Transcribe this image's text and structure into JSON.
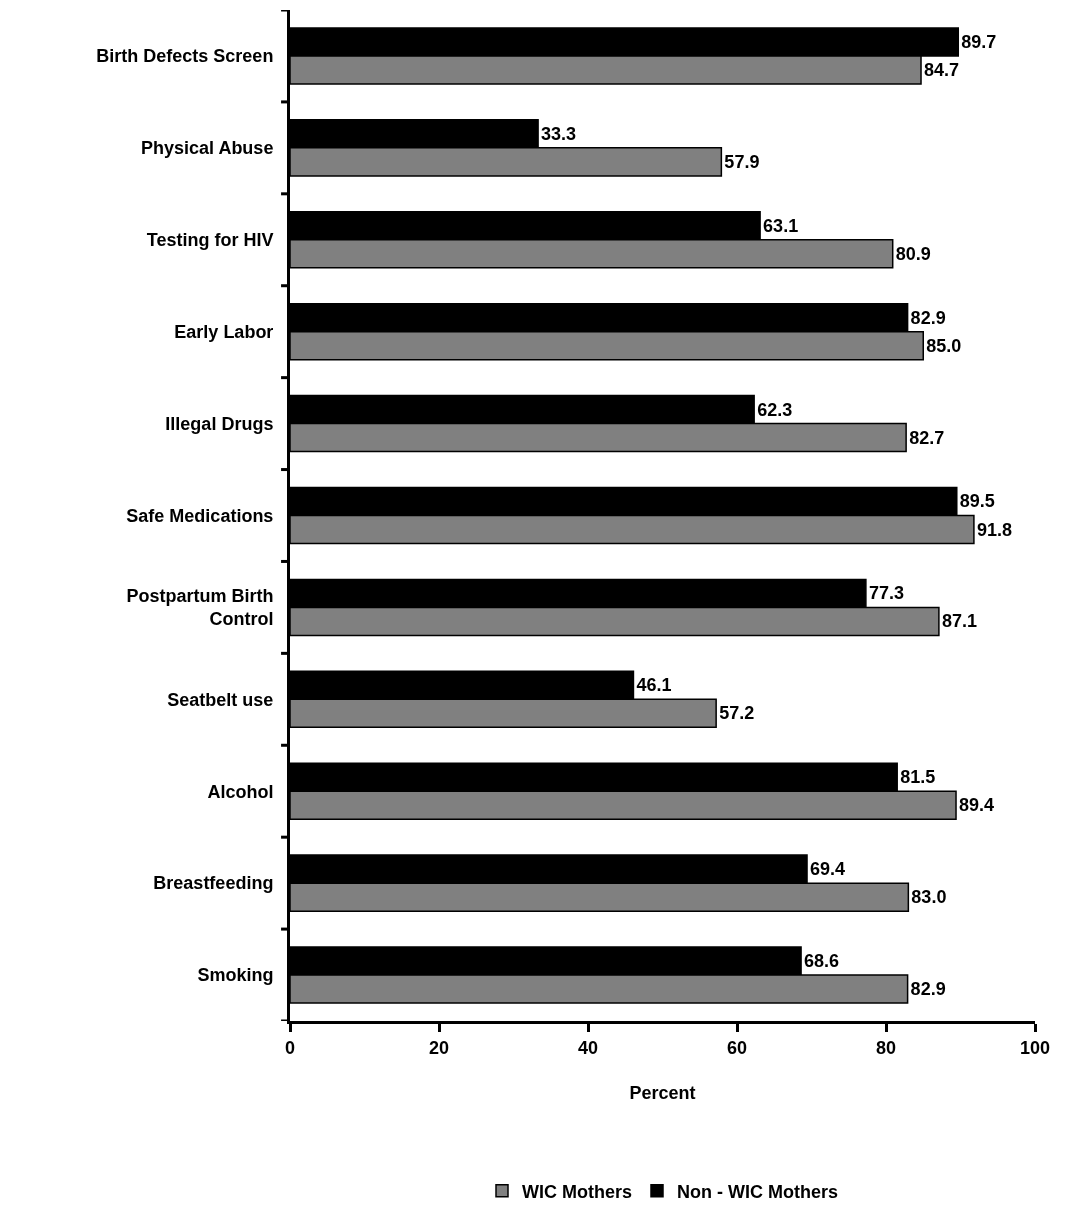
{
  "chart_data": {
    "type": "bar",
    "orientation": "horizontal",
    "xlabel": "Percent",
    "categories": [
      "Birth Defects Screen",
      "Physical Abuse",
      "Testing for HIV",
      "Early Labor",
      "Illegal Drugs",
      "Safe Medications",
      "Postpartum Birth Control",
      "Seatbelt use",
      "Alcohol",
      "Breastfeeding",
      "Smoking"
    ],
    "series": [
      {
        "name": "WIC Mothers",
        "color": "#808080",
        "values": [
          84.7,
          57.9,
          80.9,
          85.0,
          82.7,
          91.8,
          87.1,
          57.2,
          89.4,
          83.0,
          82.9
        ],
        "value_labels": [
          "84.7",
          "57.9",
          "80.9",
          "85.0",
          "82.7",
          "91.8",
          "87.1",
          "57.2",
          "89.4",
          "83.0",
          "82.9"
        ]
      },
      {
        "name": "Non - WIC Mothers",
        "color": "#000000",
        "values": [
          89.7,
          33.3,
          63.1,
          82.9,
          62.3,
          89.5,
          77.3,
          46.1,
          81.5,
          69.4,
          68.6
        ],
        "value_labels": [
          "89.7",
          "33.3",
          "63.1",
          "82.9",
          "62.3",
          "89.5",
          "77.3",
          "46.1",
          "81.5",
          "69.4",
          "68.6"
        ]
      }
    ],
    "xlim": [
      0,
      100
    ],
    "xticks": [
      0,
      20,
      40,
      60,
      80,
      100
    ],
    "legend": "bottom"
  }
}
